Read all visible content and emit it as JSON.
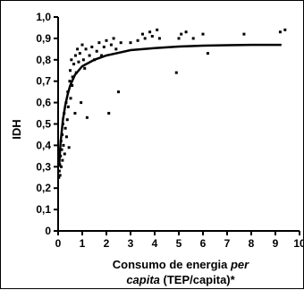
{
  "chart_data": {
    "type": "scatter",
    "xlabel_line1": "Consumo de energia ",
    "xlabel_line1_italic": "per",
    "xlabel_line2_italic": "capita",
    "xlabel_line2": " (TEP/capita)*",
    "ylabel": "IDH",
    "xlim": [
      0,
      10
    ],
    "ylim": [
      0,
      1.0
    ],
    "x_ticks": [
      "0",
      "1",
      "2",
      "3",
      "4",
      "5",
      "6",
      "7",
      "8",
      "9",
      "10"
    ],
    "y_ticks": [
      "0",
      "0,1",
      "0,2",
      "0,3",
      "0,4",
      "0,5",
      "0,6",
      "0,7",
      "0,8",
      "0,9",
      "1,0"
    ],
    "grid": false,
    "colors": {
      "points": "#000000",
      "curve": "#000000"
    },
    "points": [
      {
        "x": 0.03,
        "y": 0.25
      },
      {
        "x": 0.05,
        "y": 0.28
      },
      {
        "x": 0.07,
        "y": 0.31
      },
      {
        "x": 0.08,
        "y": 0.26
      },
      {
        "x": 0.1,
        "y": 0.35
      },
      {
        "x": 0.12,
        "y": 0.42
      },
      {
        "x": 0.13,
        "y": 0.3
      },
      {
        "x": 0.15,
        "y": 0.38
      },
      {
        "x": 0.17,
        "y": 0.45
      },
      {
        "x": 0.18,
        "y": 0.33
      },
      {
        "x": 0.2,
        "y": 0.5
      },
      {
        "x": 0.22,
        "y": 0.4
      },
      {
        "x": 0.25,
        "y": 0.55
      },
      {
        "x": 0.27,
        "y": 0.36
      },
      {
        "x": 0.3,
        "y": 0.48
      },
      {
        "x": 0.33,
        "y": 0.6
      },
      {
        "x": 0.35,
        "y": 0.44
      },
      {
        "x": 0.38,
        "y": 0.52
      },
      {
        "x": 0.4,
        "y": 0.65
      },
      {
        "x": 0.42,
        "y": 0.58
      },
      {
        "x": 0.45,
        "y": 0.39
      },
      {
        "x": 0.48,
        "y": 0.7
      },
      {
        "x": 0.5,
        "y": 0.75
      },
      {
        "x": 0.52,
        "y": 0.62
      },
      {
        "x": 0.55,
        "y": 0.8
      },
      {
        "x": 0.58,
        "y": 0.68
      },
      {
        "x": 0.6,
        "y": 0.72
      },
      {
        "x": 0.65,
        "y": 0.78
      },
      {
        "x": 0.7,
        "y": 0.55
      },
      {
        "x": 0.72,
        "y": 0.82
      },
      {
        "x": 0.75,
        "y": 0.74
      },
      {
        "x": 0.8,
        "y": 0.85
      },
      {
        "x": 0.85,
        "y": 0.79
      },
      {
        "x": 0.9,
        "y": 0.83
      },
      {
        "x": 0.95,
        "y": 0.6
      },
      {
        "x": 1.0,
        "y": 0.87
      },
      {
        "x": 1.05,
        "y": 0.8
      },
      {
        "x": 1.1,
        "y": 0.76
      },
      {
        "x": 1.15,
        "y": 0.85
      },
      {
        "x": 1.2,
        "y": 0.53
      },
      {
        "x": 1.3,
        "y": 0.82
      },
      {
        "x": 1.4,
        "y": 0.86
      },
      {
        "x": 1.5,
        "y": 0.8
      },
      {
        "x": 1.6,
        "y": 0.84
      },
      {
        "x": 1.7,
        "y": 0.88
      },
      {
        "x": 1.8,
        "y": 0.82
      },
      {
        "x": 1.9,
        "y": 0.86
      },
      {
        "x": 2.0,
        "y": 0.89
      },
      {
        "x": 2.1,
        "y": 0.55
      },
      {
        "x": 2.2,
        "y": 0.87
      },
      {
        "x": 2.3,
        "y": 0.9
      },
      {
        "x": 2.4,
        "y": 0.85
      },
      {
        "x": 2.5,
        "y": 0.65
      },
      {
        "x": 2.6,
        "y": 0.88
      },
      {
        "x": 3.0,
        "y": 0.88
      },
      {
        "x": 3.3,
        "y": 0.89
      },
      {
        "x": 3.5,
        "y": 0.92
      },
      {
        "x": 3.6,
        "y": 0.9
      },
      {
        "x": 3.8,
        "y": 0.93
      },
      {
        "x": 3.9,
        "y": 0.91
      },
      {
        "x": 4.1,
        "y": 0.94
      },
      {
        "x": 4.2,
        "y": 0.9
      },
      {
        "x": 4.9,
        "y": 0.74
      },
      {
        "x": 5.0,
        "y": 0.9
      },
      {
        "x": 5.1,
        "y": 0.92
      },
      {
        "x": 5.3,
        "y": 0.93
      },
      {
        "x": 5.6,
        "y": 0.9
      },
      {
        "x": 6.0,
        "y": 0.92
      },
      {
        "x": 6.2,
        "y": 0.83
      },
      {
        "x": 7.7,
        "y": 0.92
      },
      {
        "x": 9.2,
        "y": 0.93
      },
      {
        "x": 9.4,
        "y": 0.94
      }
    ],
    "trend_curve": [
      {
        "x": 0.04,
        "y": 0.3
      },
      {
        "x": 0.1,
        "y": 0.41
      },
      {
        "x": 0.2,
        "y": 0.52
      },
      {
        "x": 0.3,
        "y": 0.59
      },
      {
        "x": 0.4,
        "y": 0.64
      },
      {
        "x": 0.5,
        "y": 0.68
      },
      {
        "x": 0.7,
        "y": 0.73
      },
      {
        "x": 1.0,
        "y": 0.77
      },
      {
        "x": 1.5,
        "y": 0.8
      },
      {
        "x": 2.0,
        "y": 0.82
      },
      {
        "x": 3.0,
        "y": 0.845
      },
      {
        "x": 4.0,
        "y": 0.855
      },
      {
        "x": 5.0,
        "y": 0.862
      },
      {
        "x": 6.0,
        "y": 0.866
      },
      {
        "x": 7.0,
        "y": 0.868
      },
      {
        "x": 8.0,
        "y": 0.87
      },
      {
        "x": 9.0,
        "y": 0.87
      },
      {
        "x": 9.25,
        "y": 0.87
      }
    ]
  }
}
